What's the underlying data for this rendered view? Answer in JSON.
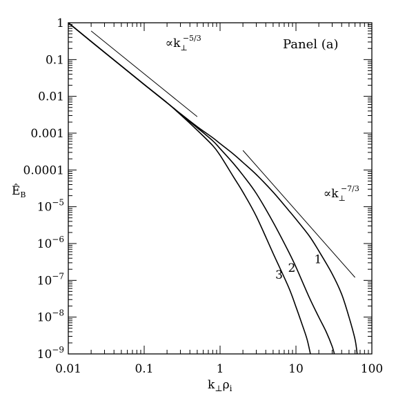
{
  "chart_data": {
    "type": "line",
    "title": "",
    "panel_label": "Panel (a)",
    "xlabel": {
      "main": "k",
      "sub1": "⊥",
      "mid": "ρ",
      "sub2": "i"
    },
    "ylabel": {
      "main": "Ê",
      "sub": "B"
    },
    "xscale": "log",
    "yscale": "log",
    "xlim": [
      0.01,
      100
    ],
    "ylim": [
      1e-09,
      1
    ],
    "grid": false,
    "x_ticks": [
      {
        "value": 0.01,
        "label": "0.01"
      },
      {
        "value": 0.1,
        "label": "0.1"
      },
      {
        "value": 1,
        "label": "1"
      },
      {
        "value": 10,
        "label": "10"
      },
      {
        "value": 100,
        "label": "100"
      }
    ],
    "y_ticks": [
      {
        "value": 1,
        "label": "1"
      },
      {
        "value": 0.1,
        "label": "0.1"
      },
      {
        "value": 0.01,
        "label": "0.01"
      },
      {
        "value": 0.001,
        "label": "0.001"
      },
      {
        "value": 0.0001,
        "label": "0.0001"
      },
      {
        "value": 1e-05,
        "base": "10",
        "exp": "−5"
      },
      {
        "value": 1e-06,
        "base": "10",
        "exp": "−6"
      },
      {
        "value": 1e-07,
        "base": "10",
        "exp": "−7"
      },
      {
        "value": 1e-08,
        "base": "10",
        "exp": "−8"
      },
      {
        "value": 1e-09,
        "base": "10",
        "exp": "−9"
      }
    ],
    "series": [
      {
        "label": "1",
        "x": [
          0.01,
          0.02,
          0.05,
          0.1,
          0.2,
          0.3,
          0.5,
          0.8,
          1,
          1.5,
          2,
          3,
          5,
          8,
          10,
          15,
          20,
          30,
          40,
          50,
          60,
          64
        ],
        "y": [
          1,
          0.31,
          0.067,
          0.021,
          0.0067,
          0.0034,
          0.0015,
          0.00075,
          0.00052,
          0.00027,
          0.00016,
          7.5e-05,
          2.5e-05,
          8e-06,
          4.6e-06,
          1.6e-06,
          6.3e-07,
          1.5e-07,
          4.2e-08,
          1e-08,
          2.5e-09,
          1e-09
        ]
      },
      {
        "label": "2",
        "x": [
          0.01,
          0.02,
          0.05,
          0.1,
          0.2,
          0.3,
          0.5,
          0.8,
          1,
          1.5,
          2,
          3,
          5,
          8,
          10,
          15,
          20,
          25,
          30,
          32
        ],
        "y": [
          1,
          0.31,
          0.067,
          0.021,
          0.0067,
          0.0033,
          0.0014,
          0.00062,
          0.00038,
          0.00015,
          7.2e-05,
          2.3e-05,
          3.8e-06,
          6e-07,
          2.3e-07,
          3.4e-08,
          1e-08,
          4e-09,
          1.6e-09,
          1e-09
        ]
      },
      {
        "label": "3",
        "x": [
          0.01,
          0.02,
          0.05,
          0.1,
          0.2,
          0.3,
          0.5,
          0.8,
          1,
          1.5,
          2,
          3,
          5,
          8,
          10,
          12,
          14,
          15.5
        ],
        "y": [
          1,
          0.31,
          0.067,
          0.021,
          0.0067,
          0.0032,
          0.0012,
          0.00046,
          0.00025,
          6.5e-05,
          2.5e-05,
          5.5e-06,
          5.4e-07,
          6.5e-08,
          1.9e-08,
          6.5e-09,
          2.5e-09,
          1e-09
        ]
      }
    ],
    "curve_labels": [
      {
        "text": "3",
        "x": 6.0,
        "y": 1.1e-07
      },
      {
        "text": "2",
        "x": 8.8,
        "y": 1.7e-07
      },
      {
        "text": "1",
        "x": 19.5,
        "y": 2.9e-07
      }
    ],
    "reference_lines": [
      {
        "label": "k⊥^−5/3",
        "text_prefix": "∝k",
        "sub": "⊥",
        "exp": "−5/3",
        "x": [
          0.02,
          0.5
        ],
        "y": [
          0.6,
          0.0028
        ],
        "label_x": 0.19,
        "label_y": 0.22
      },
      {
        "label": "k⊥^−7/3",
        "text_prefix": "∝k",
        "sub": "⊥",
        "exp": "−7/3",
        "x": [
          2,
          60
        ],
        "y": [
          0.00034,
          1.2e-07
        ],
        "label_x": 23,
        "label_y": 1.8e-05
      }
    ]
  }
}
